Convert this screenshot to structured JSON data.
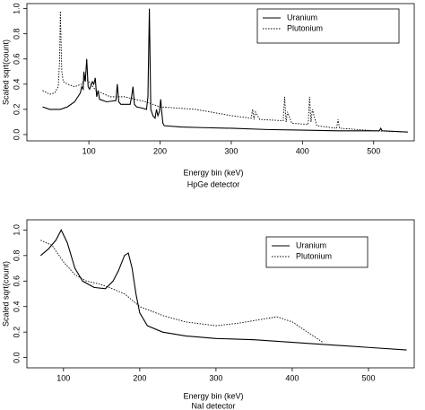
{
  "chart_data": [
    {
      "type": "line",
      "xlabel": "Energy bin (keV)",
      "caption": "HpGe detector",
      "ylabel": "Scaled sqrt(count)",
      "xlim": [
        13,
        557
      ],
      "ylim": [
        -0.05,
        1.04
      ],
      "xticks": [
        100,
        200,
        300,
        400,
        500
      ],
      "yticks": [
        {
          "value": 0,
          "label": "0.0"
        },
        0.2,
        0.4,
        0.6,
        0.8,
        {
          "value": 1,
          "label": "1.0"
        }
      ],
      "legend": "top right",
      "series": [
        {
          "name": "Uranium",
          "color": "#000000",
          "dash": "solid",
          "x": [
            35,
            45,
            60,
            70,
            80,
            88,
            90,
            92,
            93,
            95,
            97,
            99,
            101,
            105,
            107,
            109,
            111,
            113,
            115,
            125,
            138,
            140,
            142,
            145,
            158,
            160,
            162,
            164,
            167,
            175,
            181,
            183,
            185,
            187,
            190,
            193,
            195,
            197,
            199,
            201,
            202,
            204,
            206,
            230,
            260,
            300,
            350,
            400,
            450,
            500,
            508,
            510,
            512,
            548
          ],
          "values": [
            0.22,
            0.2,
            0.2,
            0.22,
            0.26,
            0.33,
            0.38,
            0.36,
            0.5,
            0.42,
            0.6,
            0.38,
            0.36,
            0.42,
            0.4,
            0.45,
            0.3,
            0.35,
            0.28,
            0.26,
            0.27,
            0.4,
            0.26,
            0.24,
            0.24,
            0.3,
            0.38,
            0.24,
            0.22,
            0.21,
            0.2,
            0.3,
            1.0,
            0.2,
            0.15,
            0.13,
            0.2,
            0.15,
            0.18,
            0.28,
            0.2,
            0.09,
            0.07,
            0.06,
            0.055,
            0.05,
            0.04,
            0.035,
            0.03,
            0.03,
            0.03,
            0.05,
            0.03,
            0.02
          ]
        },
        {
          "name": "Plutonium",
          "color": "#000000",
          "dash": "dotted",
          "x": [
            35,
            45,
            52,
            57,
            59,
            60,
            62,
            64,
            70,
            80,
            90,
            95,
            100,
            110,
            130,
            150,
            180,
            200,
            250,
            300,
            328,
            330,
            332,
            334,
            340,
            373,
            375,
            377,
            379,
            385,
            408,
            410,
            412,
            414,
            420,
            448,
            450,
            452,
            454,
            500,
            548
          ],
          "values": [
            0.35,
            0.32,
            0.33,
            0.38,
            0.6,
            0.98,
            0.5,
            0.42,
            0.4,
            0.38,
            0.4,
            0.45,
            0.42,
            0.35,
            0.3,
            0.3,
            0.26,
            0.22,
            0.2,
            0.15,
            0.13,
            0.2,
            0.12,
            0.18,
            0.12,
            0.11,
            0.3,
            0.1,
            0.18,
            0.09,
            0.08,
            0.3,
            0.1,
            0.2,
            0.07,
            0.05,
            0.12,
            0.05,
            0.05,
            0.03,
            0.02
          ]
        }
      ]
    },
    {
      "type": "line",
      "xlabel": "Energy bin (keV)",
      "caption": "NaI detector",
      "ylabel": "Scaled sqrt(count)",
      "xlim": [
        52,
        560
      ],
      "ylim": [
        -0.08,
        1.08
      ],
      "xticks": [
        100,
        200,
        300,
        400,
        500
      ],
      "yticks": [
        {
          "value": 0,
          "label": "0.0"
        },
        0.2,
        0.4,
        0.6,
        0.8,
        {
          "value": 1,
          "label": "1.0"
        }
      ],
      "legend": "top right",
      "series": [
        {
          "name": "Uranium",
          "color": "#000000",
          "dash": "solid",
          "x": [
            70,
            80,
            90,
            97,
            105,
            115,
            125,
            140,
            155,
            165,
            172,
            180,
            185,
            190,
            195,
            200,
            210,
            230,
            260,
            300,
            350,
            400,
            450,
            500,
            550
          ],
          "values": [
            0.8,
            0.85,
            0.92,
            1.0,
            0.9,
            0.7,
            0.6,
            0.55,
            0.54,
            0.6,
            0.68,
            0.8,
            0.82,
            0.7,
            0.5,
            0.35,
            0.25,
            0.2,
            0.17,
            0.15,
            0.14,
            0.12,
            0.1,
            0.08,
            0.06
          ]
        },
        {
          "name": "Plutonium",
          "color": "#000000",
          "dash": "dotted",
          "x": [
            70,
            85,
            100,
            115,
            130,
            145,
            160,
            180,
            200,
            230,
            260,
            300,
            330,
            360,
            380,
            400,
            420,
            440
          ],
          "values": [
            0.92,
            0.88,
            0.75,
            0.65,
            0.6,
            0.58,
            0.55,
            0.5,
            0.4,
            0.33,
            0.28,
            0.25,
            0.27,
            0.3,
            0.32,
            0.28,
            0.2,
            0.12
          ]
        }
      ]
    }
  ]
}
